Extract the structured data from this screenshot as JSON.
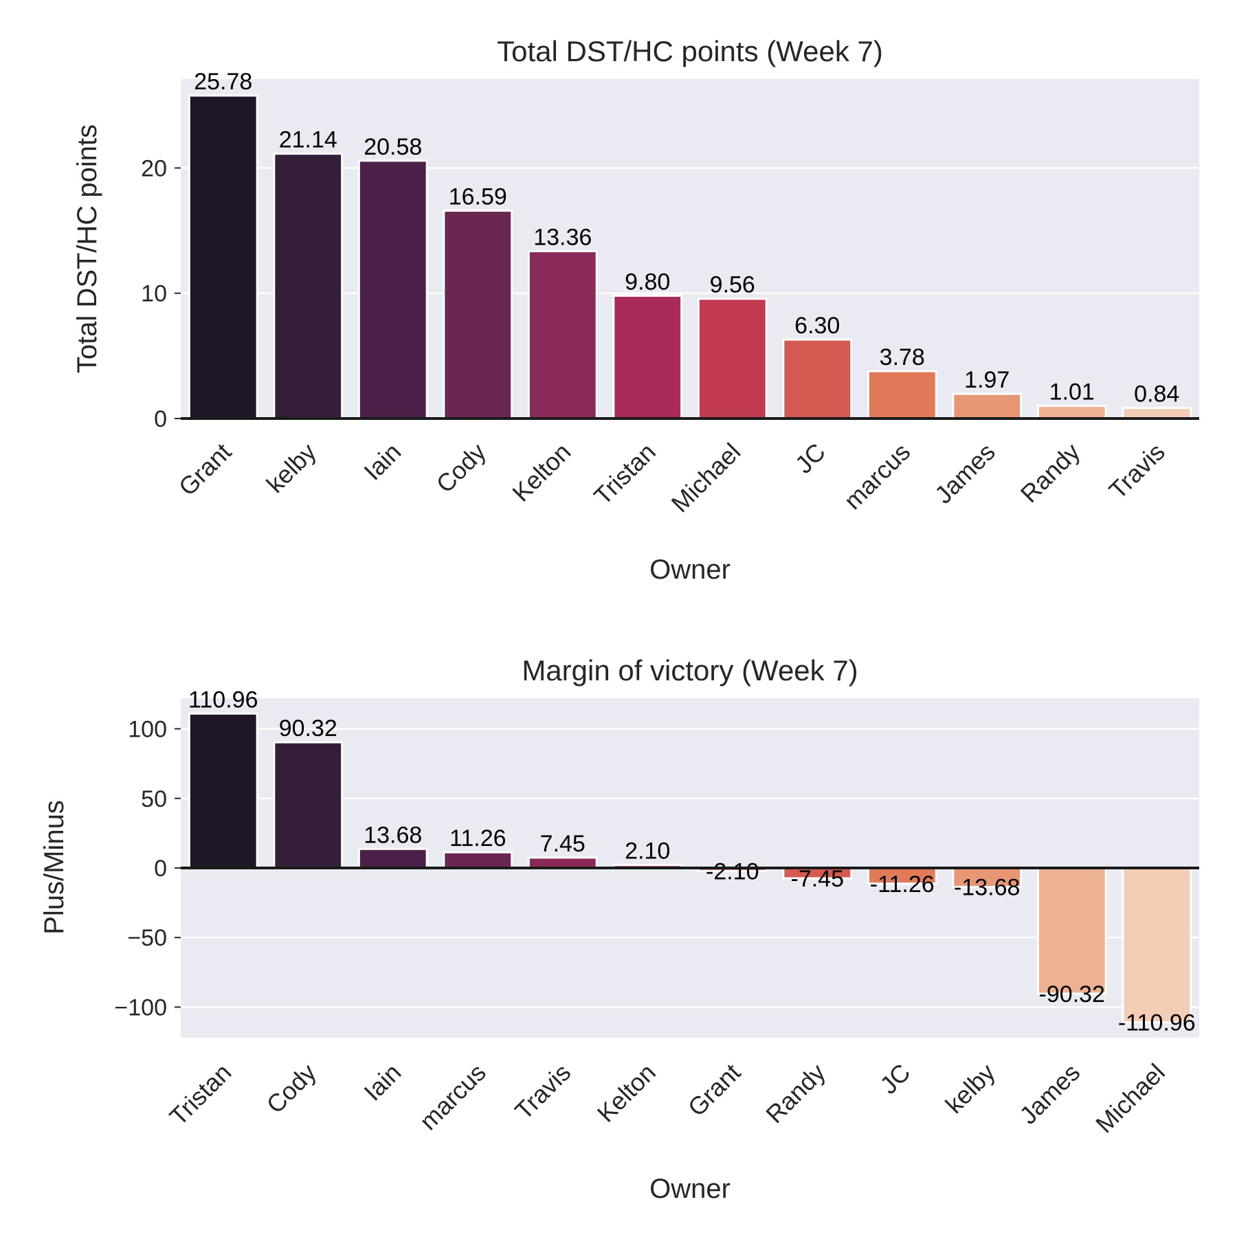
{
  "chart_data": [
    {
      "type": "bar",
      "title": "Total DST/HC points (Week 7)",
      "xlabel": "Owner",
      "ylabel": "Total DST/HC points",
      "categories": [
        "Grant",
        "kelby",
        "Iain",
        "Cody",
        "Kelton",
        "Tristan",
        "Michael",
        "JC",
        "marcus",
        "James",
        "Randy",
        "Travis"
      ],
      "values": [
        25.78,
        21.14,
        20.58,
        16.59,
        13.36,
        9.8,
        9.56,
        6.3,
        3.78,
        1.97,
        1.01,
        0.84
      ],
      "value_labels": [
        "25.78",
        "21.14",
        "20.58",
        "16.59",
        "13.36",
        "9.80",
        "9.56",
        "6.30",
        "3.78",
        "1.97",
        "1.01",
        "0.84"
      ],
      "yticks": [
        0,
        10,
        20
      ],
      "ytick_labels": [
        "0",
        "10",
        "20"
      ],
      "ylim": [
        0,
        27.1
      ],
      "grid": true,
      "colors": [
        "#1e1628",
        "#351e39",
        "#4c2149",
        "#6a2752",
        "#892a5a",
        "#a92a5b",
        "#c23a51",
        "#d35a50",
        "#e07a58",
        "#e89775",
        "#ecb291",
        "#f3cdb5"
      ]
    },
    {
      "type": "bar",
      "title": "Margin of victory (Week 7)",
      "xlabel": "Owner",
      "ylabel": "Plus/Minus",
      "categories": [
        "Tristan",
        "Cody",
        "Iain",
        "marcus",
        "Travis",
        "Kelton",
        "Grant",
        "Randy",
        "JC",
        "kelby",
        "James",
        "Michael"
      ],
      "values": [
        110.96,
        90.32,
        13.68,
        11.26,
        7.45,
        2.1,
        -2.1,
        -7.45,
        -11.26,
        -13.68,
        -90.32,
        -110.96
      ],
      "value_labels": [
        "110.96",
        "90.32",
        "13.68",
        "11.26",
        "7.45",
        "2.10",
        "-2.10",
        "-7.45",
        "-11.26",
        "-13.68",
        "-90.32",
        "-110.96"
      ],
      "yticks": [
        -100,
        -50,
        0,
        50,
        100
      ],
      "ytick_labels": [
        "−100",
        "−50",
        "0",
        "50",
        "100"
      ],
      "ylim": [
        -122,
        122
      ],
      "grid": true,
      "colors": [
        "#1e1628",
        "#351e39",
        "#4c2149",
        "#6a2752",
        "#892a5a",
        "#a92a5b",
        "#c23a51",
        "#d35a50",
        "#e07a58",
        "#e89775",
        "#ecb291",
        "#f3cdb5"
      ]
    }
  ]
}
